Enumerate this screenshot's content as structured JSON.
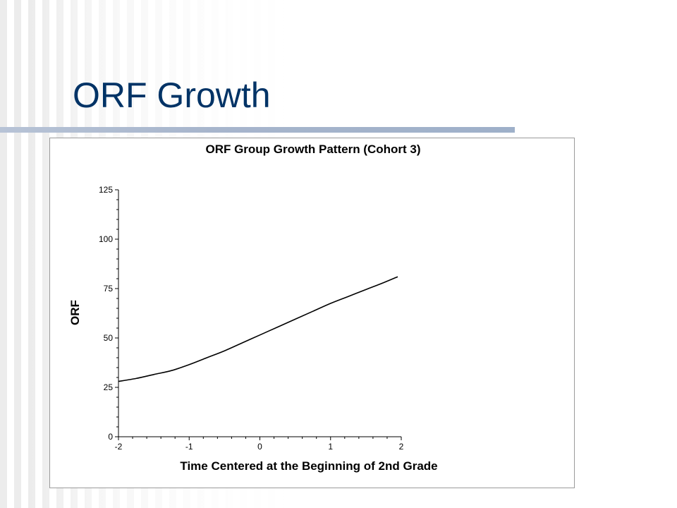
{
  "slide": {
    "title": "ORF Growth"
  },
  "chart_data": {
    "type": "line",
    "title": "ORF Group Growth Pattern (Cohort 3)",
    "xlabel": "Time Centered at the Beginning of 2nd Grade",
    "ylabel": "ORF",
    "xlim": [
      -2,
      2
    ],
    "ylim": [
      0,
      125
    ],
    "x_ticks": [
      -2,
      -1,
      0,
      1,
      2
    ],
    "y_ticks": [
      0,
      25,
      50,
      75,
      100,
      125
    ],
    "x_minor_step": 0.2,
    "y_minor_step": 5,
    "grid": false,
    "legend": "none",
    "line_color": "#000000",
    "series": [
      {
        "x": [
          -2,
          -1.75,
          -1.5,
          -1.25,
          -1,
          -0.75,
          -0.5,
          -0.25,
          0,
          0.25,
          0.5,
          0.75,
          1,
          1.25,
          1.5,
          1.75,
          1.95
        ],
        "values": [
          28,
          29.5,
          31.5,
          33.5,
          36.5,
          40,
          43.5,
          47.5,
          51.5,
          55.5,
          59.5,
          63.5,
          67.5,
          71,
          74.5,
          78,
          81
        ]
      }
    ]
  }
}
